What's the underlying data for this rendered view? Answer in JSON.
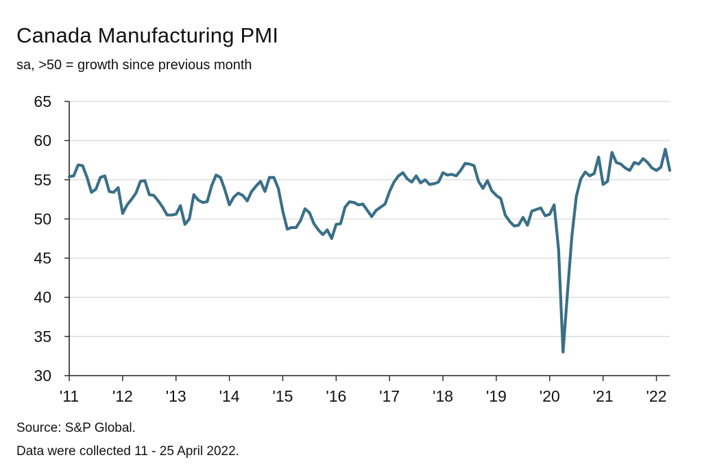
{
  "header": {
    "title": "Canada Manufacturing PMI",
    "subtitle": "sa, >50 = growth since previous month"
  },
  "footer": {
    "source": "Source: S&P Global.",
    "note": "Data were collected 11 - 25 April 2022."
  },
  "colors": {
    "line": "#3a6f87",
    "grid": "#d6d6d6",
    "axis": "#222222"
  },
  "chart_data": {
    "type": "line",
    "title": "Canada Manufacturing PMI",
    "subtitle": "sa, >50 = growth since previous month",
    "xlabel": "",
    "ylabel": "",
    "ylim": [
      30,
      65
    ],
    "yticks": [
      30,
      35,
      40,
      45,
      50,
      55,
      60,
      65
    ],
    "xlim": [
      "2011-01",
      "2022-04"
    ],
    "xticks": [
      {
        "label": "'11",
        "date": "2011-01"
      },
      {
        "label": "'12",
        "date": "2012-01"
      },
      {
        "label": "'13",
        "date": "2013-01"
      },
      {
        "label": "'14",
        "date": "2014-01"
      },
      {
        "label": "'15",
        "date": "2015-01"
      },
      {
        "label": "'16",
        "date": "2016-01"
      },
      {
        "label": "'17",
        "date": "2017-01"
      },
      {
        "label": "'18",
        "date": "2018-01"
      },
      {
        "label": "'19",
        "date": "2019-01"
      },
      {
        "label": "'20",
        "date": "2020-01"
      },
      {
        "label": "'21",
        "date": "2021-01"
      },
      {
        "label": "'22",
        "date": "2022-01"
      }
    ],
    "grid": "horizontal",
    "series": [
      {
        "start": "2011-01",
        "frequency": "monthly",
        "values": [
          55.4,
          55.5,
          56.9,
          56.8,
          55.3,
          53.4,
          53.8,
          55.3,
          55.5,
          53.5,
          53.4,
          54.0,
          50.7,
          51.8,
          52.5,
          53.3,
          54.8,
          54.9,
          53.1,
          53.0,
          52.3,
          51.5,
          50.5,
          50.5,
          50.6,
          51.7,
          49.3,
          50.0,
          53.1,
          52.4,
          52.1,
          52.2,
          54.2,
          55.6,
          55.3,
          53.7,
          51.8,
          52.8,
          53.3,
          53.0,
          52.3,
          53.5,
          54.2,
          54.8,
          53.5,
          55.3,
          55.3,
          53.9,
          51.0,
          48.7,
          48.9,
          48.9,
          49.8,
          51.3,
          50.8,
          49.4,
          48.6,
          48.0,
          48.6,
          47.5,
          49.3,
          49.4,
          51.5,
          52.2,
          52.1,
          51.8,
          51.9,
          51.1,
          50.3,
          51.1,
          51.5,
          51.9,
          53.5,
          54.7,
          55.5,
          55.9,
          55.1,
          54.7,
          55.5,
          54.6,
          55.0,
          54.4,
          54.5,
          54.7,
          55.9,
          55.6,
          55.7,
          55.5,
          56.2,
          57.1,
          57.0,
          56.8,
          54.8,
          53.9,
          54.9,
          53.6,
          53.0,
          52.6,
          50.5,
          49.7,
          49.1,
          49.2,
          50.2,
          49.2,
          51.0,
          51.2,
          51.4,
          50.4,
          50.6,
          51.8,
          46.1,
          33.0,
          40.6,
          47.8,
          52.9,
          55.1,
          56.0,
          55.5,
          55.8,
          57.9,
          54.4,
          54.8,
          58.5,
          57.2,
          57.0,
          56.5,
          56.2,
          57.2,
          57.0,
          57.7,
          57.2,
          56.5,
          56.2,
          56.6,
          58.9,
          56.2
        ]
      }
    ]
  }
}
